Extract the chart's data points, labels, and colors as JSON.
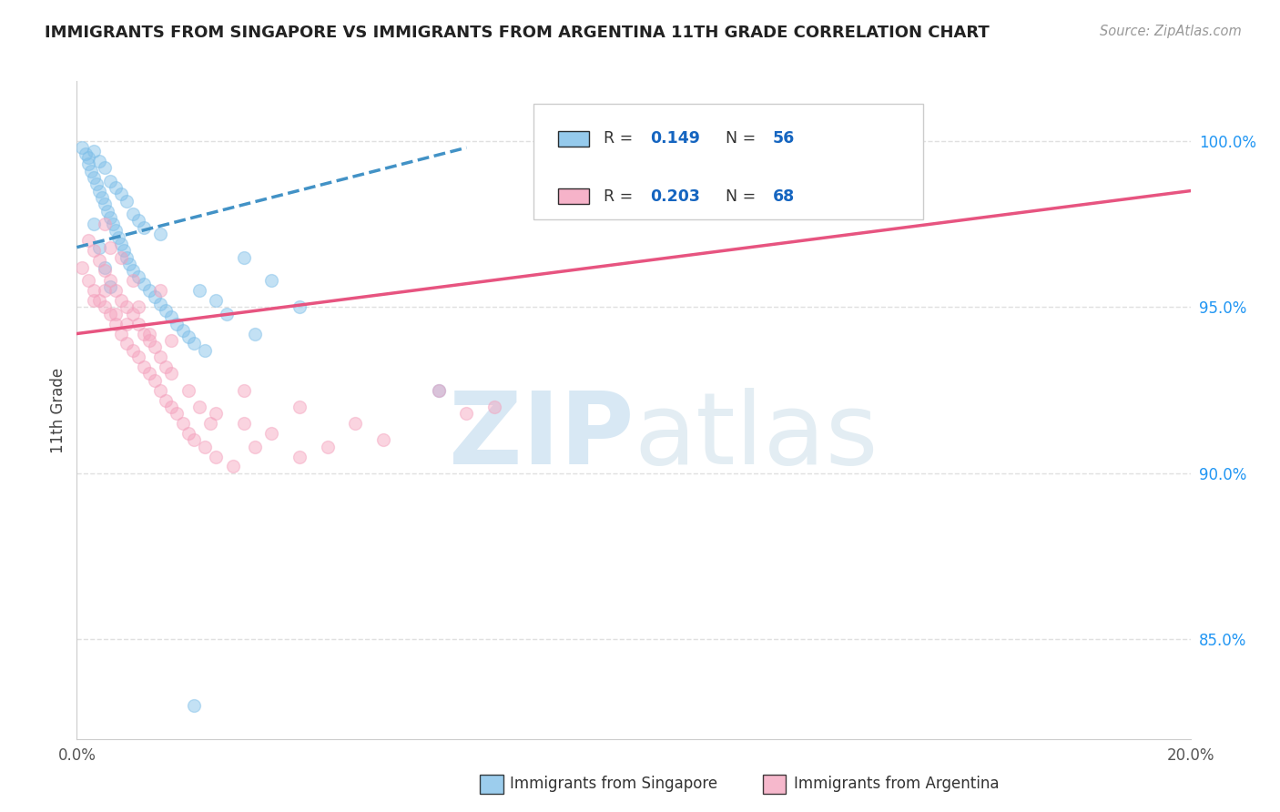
{
  "title": "IMMIGRANTS FROM SINGAPORE VS IMMIGRANTS FROM ARGENTINA 11TH GRADE CORRELATION CHART",
  "source": "Source: ZipAtlas.com",
  "ylabel": "11th Grade",
  "yticks": [
    85.0,
    90.0,
    95.0,
    100.0
  ],
  "ytick_labels": [
    "85.0%",
    "90.0%",
    "95.0%",
    "100.0%"
  ],
  "legend": [
    {
      "label": "Immigrants from Singapore",
      "R": 0.149,
      "N": 56,
      "color": "#7bbde8"
    },
    {
      "label": "Immigrants from Argentina",
      "R": 0.203,
      "N": 68,
      "color": "#f4a0bc"
    }
  ],
  "singapore_x": [
    0.1,
    0.15,
    0.2,
    0.2,
    0.25,
    0.3,
    0.3,
    0.35,
    0.4,
    0.4,
    0.45,
    0.5,
    0.5,
    0.55,
    0.6,
    0.6,
    0.65,
    0.7,
    0.7,
    0.75,
    0.8,
    0.8,
    0.85,
    0.9,
    0.9,
    0.95,
    1.0,
    1.0,
    1.1,
    1.1,
    1.2,
    1.2,
    1.3,
    1.4,
    1.5,
    1.5,
    1.6,
    1.7,
    1.8,
    1.9,
    2.0,
    2.1,
    2.2,
    2.3,
    2.5,
    2.7,
    3.0,
    3.2,
    3.5,
    4.0,
    0.3,
    0.4,
    0.5,
    0.6,
    6.5,
    2.1
  ],
  "singapore_y": [
    99.8,
    99.6,
    99.5,
    99.3,
    99.1,
    98.9,
    99.7,
    98.7,
    98.5,
    99.4,
    98.3,
    98.1,
    99.2,
    97.9,
    97.7,
    98.8,
    97.5,
    97.3,
    98.6,
    97.1,
    96.9,
    98.4,
    96.7,
    96.5,
    98.2,
    96.3,
    96.1,
    97.8,
    95.9,
    97.6,
    95.7,
    97.4,
    95.5,
    95.3,
    95.1,
    97.2,
    94.9,
    94.7,
    94.5,
    94.3,
    94.1,
    93.9,
    95.5,
    93.7,
    95.2,
    94.8,
    96.5,
    94.2,
    95.8,
    95.0,
    97.5,
    96.8,
    96.2,
    95.6,
    92.5,
    83.0
  ],
  "argentina_x": [
    0.1,
    0.2,
    0.2,
    0.3,
    0.3,
    0.4,
    0.4,
    0.5,
    0.5,
    0.5,
    0.6,
    0.6,
    0.6,
    0.7,
    0.7,
    0.8,
    0.8,
    0.8,
    0.9,
    0.9,
    1.0,
    1.0,
    1.0,
    1.1,
    1.1,
    1.2,
    1.2,
    1.3,
    1.3,
    1.4,
    1.4,
    1.5,
    1.5,
    1.6,
    1.6,
    1.7,
    1.7,
    1.8,
    1.9,
    2.0,
    2.0,
    2.1,
    2.2,
    2.3,
    2.4,
    2.5,
    2.5,
    2.8,
    3.0,
    3.0,
    3.2,
    3.5,
    4.0,
    4.0,
    4.5,
    5.0,
    5.5,
    6.5,
    7.0,
    7.5,
    0.3,
    0.5,
    0.7,
    0.9,
    1.1,
    1.3,
    1.5,
    1.7
  ],
  "argentina_y": [
    96.2,
    95.8,
    97.0,
    95.5,
    96.7,
    95.2,
    96.4,
    95.0,
    96.1,
    97.5,
    94.8,
    95.8,
    96.8,
    94.5,
    95.5,
    94.2,
    95.2,
    96.5,
    93.9,
    95.0,
    93.7,
    94.8,
    95.8,
    93.5,
    94.5,
    93.2,
    94.2,
    93.0,
    94.0,
    92.8,
    93.8,
    92.5,
    93.5,
    92.2,
    93.2,
    92.0,
    93.0,
    91.8,
    91.5,
    91.2,
    92.5,
    91.0,
    92.0,
    90.8,
    91.5,
    90.5,
    91.8,
    90.2,
    91.5,
    92.5,
    90.8,
    91.2,
    90.5,
    92.0,
    90.8,
    91.5,
    91.0,
    92.5,
    91.8,
    92.0,
    95.2,
    95.5,
    94.8,
    94.5,
    95.0,
    94.2,
    95.5,
    94.0
  ],
  "bg_color": "#ffffff",
  "dot_size": 100,
  "dot_alpha": 0.45,
  "singapore_color": "#7bbde8",
  "argentina_color": "#f4a0bc",
  "singapore_line_color": "#4292c6",
  "argentina_line_color": "#e75480",
  "grid_color": "#e0e0e0",
  "title_color": "#222222",
  "xmin": 0.0,
  "xmax": 20.0,
  "ymin": 82.0,
  "ymax": 101.8,
  "sg_trend_x0": 0.0,
  "sg_trend_y0": 96.8,
  "sg_trend_x1": 7.0,
  "sg_trend_y1": 99.8,
  "ar_trend_x0": 0.0,
  "ar_trend_y0": 94.2,
  "ar_trend_x1": 20.0,
  "ar_trend_y1": 98.5
}
